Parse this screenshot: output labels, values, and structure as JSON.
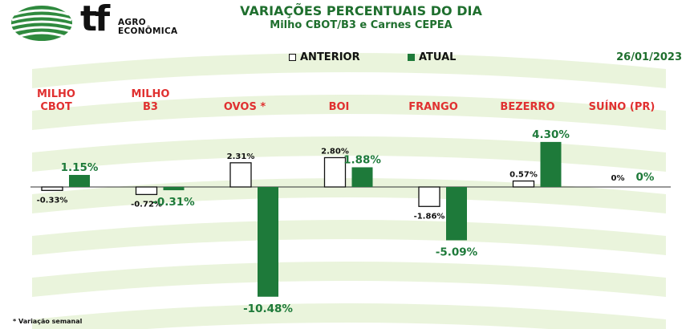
{
  "brand": {
    "logo_text": "tf",
    "logo_sub_line1": "AGRO",
    "logo_sub_line2": "ECONÔMICA"
  },
  "header": {
    "title": "VARIAÇÕES PERCENTUAIS DO DIA",
    "subtitle": "Milho CBOT/B3 e Carnes CEPEA",
    "date": "26/01/2023"
  },
  "colors": {
    "atual": "#1e7a3a",
    "anterior": "#ffffff",
    "category_label": "#e03030",
    "value_atual": "#1e7a3a",
    "value_anterior": "#111111",
    "background_stripes": "#e6f2d6"
  },
  "chart_data": {
    "type": "bar",
    "categories": [
      "MILHO CBOT",
      "MILHO B3",
      "OVOS *",
      "BOI",
      "FRANGO",
      "BEZERRO",
      "SUÍNO (PR)"
    ],
    "category_lines": [
      [
        "MILHO",
        "CBOT"
      ],
      [
        "MILHO",
        "B3"
      ],
      [
        "OVOS *"
      ],
      [
        "BOI"
      ],
      [
        "FRANGO"
      ],
      [
        "BEZERRO"
      ],
      [
        "SUÍNO (PR)"
      ]
    ],
    "series": [
      {
        "name": "ANTERIOR",
        "values": [
          -0.33,
          -0.72,
          2.31,
          2.8,
          -1.86,
          0.57,
          0
        ],
        "labels": [
          "-0.33%",
          "-0.72%",
          "2.31%",
          "2.80%",
          "-1.86%",
          "0.57%",
          "0%"
        ]
      },
      {
        "name": "ATUAL",
        "values": [
          1.15,
          -0.31,
          -10.48,
          1.88,
          -5.09,
          4.3,
          0
        ],
        "labels": [
          "1.15%",
          "-0.31%",
          "-10.48%",
          "1.88%",
          "-5.09%",
          "4.30%",
          "0%"
        ]
      }
    ],
    "ylim": [
      -12,
      5
    ],
    "grid": false,
    "legend_position": "top-center",
    "footnote": "* Variação semanal"
  }
}
